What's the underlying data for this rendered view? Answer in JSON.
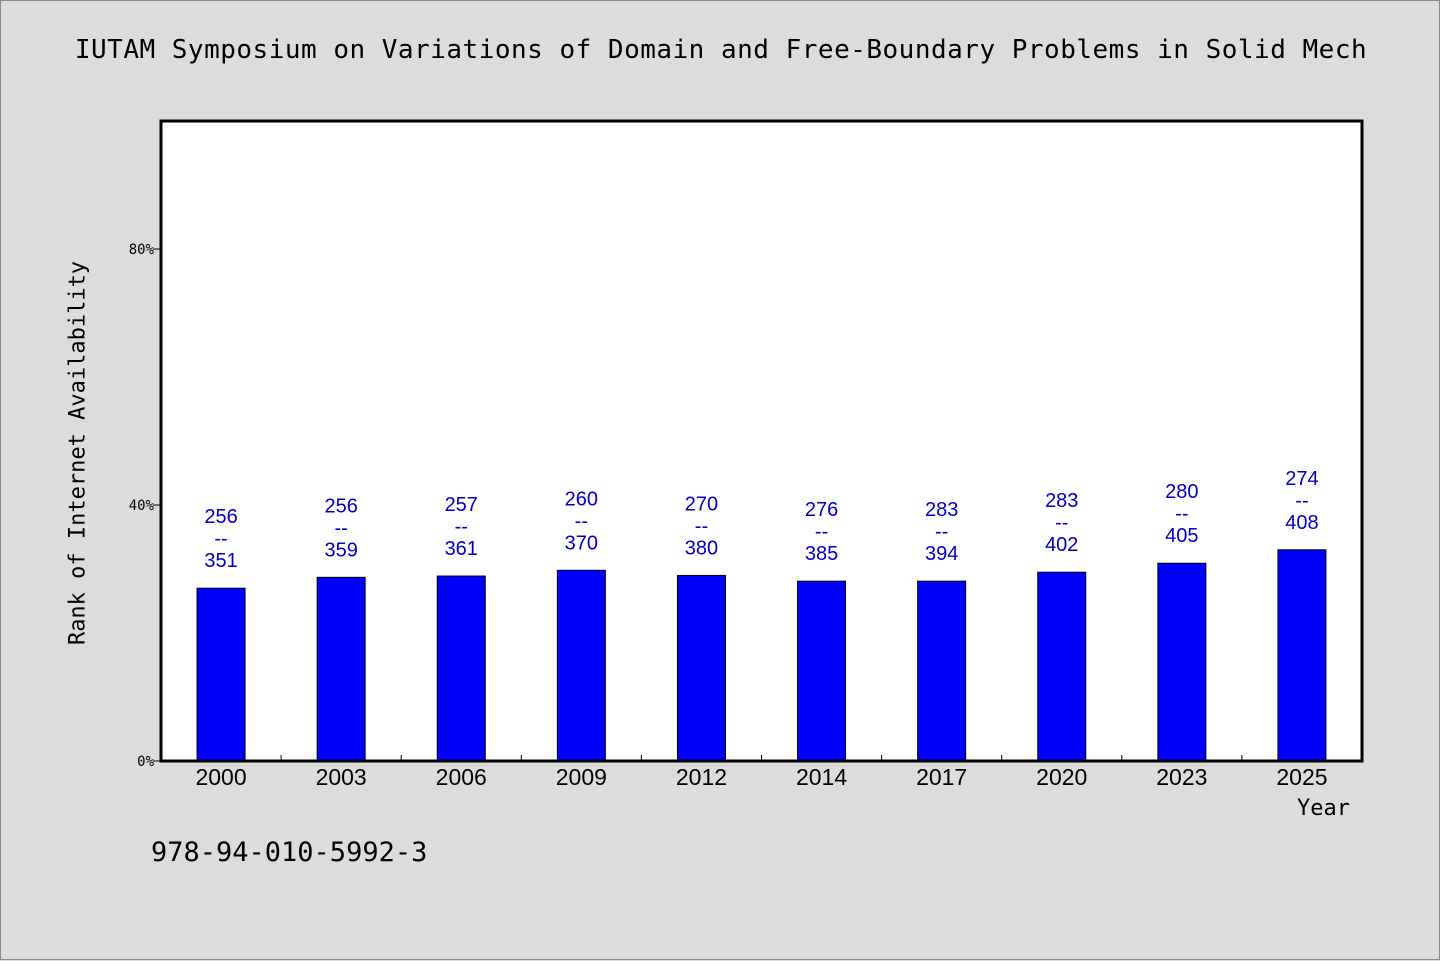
{
  "title": "IUTAM Symposium on Variations of Domain and Free-Boundary Problems in Solid Mech",
  "isbn": "978-94-010-5992-3",
  "colors": {
    "bar": "#0000ff",
    "label": "#0000cc",
    "plot_bg": "#ffffff",
    "page_bg": "#dcdcdc"
  },
  "chart_data": {
    "type": "bar",
    "title": "IUTAM Symposium on Variations of Domain and Free-Boundary Problems in Solid Mech",
    "xlabel": "Year",
    "ylabel": "Rank of Internet Availability",
    "ylim": [
      0,
      100
    ],
    "yticks": [
      0,
      40,
      80
    ],
    "ytick_labels": [
      "0%",
      "40%",
      "80%"
    ],
    "categories": [
      "2000",
      "2003",
      "2006",
      "2009",
      "2012",
      "2014",
      "2017",
      "2020",
      "2023",
      "2025"
    ],
    "values": [
      27,
      28.7,
      28.9,
      29.8,
      29,
      28.1,
      28.1,
      29.5,
      30.9,
      33
    ],
    "bar_labels": [
      [
        "256",
        "--",
        "351"
      ],
      [
        "256",
        "--",
        "359"
      ],
      [
        "257",
        "--",
        "361"
      ],
      [
        "260",
        "--",
        "370"
      ],
      [
        "270",
        "--",
        "380"
      ],
      [
        "276",
        "--",
        "385"
      ],
      [
        "283",
        "--",
        "394"
      ],
      [
        "283",
        "--",
        "402"
      ],
      [
        "280",
        "--",
        "405"
      ],
      [
        "274",
        "--",
        "408"
      ]
    ],
    "grid": false,
    "legend": "none"
  }
}
